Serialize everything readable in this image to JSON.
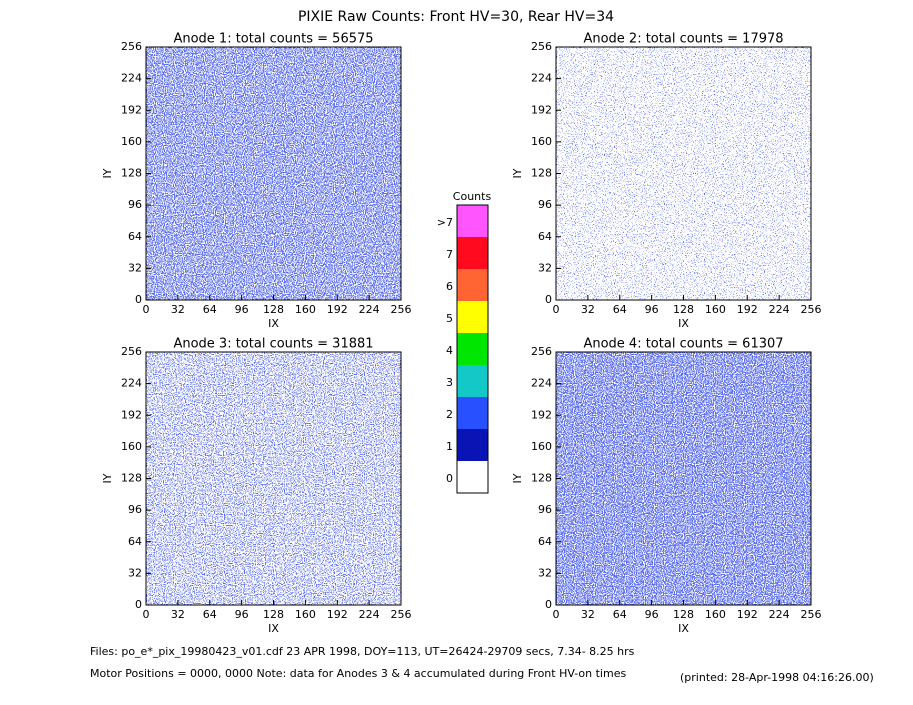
{
  "header": {
    "title": "PIXIE Raw Counts:  Front HV=30, Rear HV=34"
  },
  "chart_data": [
    {
      "type": "heatmap",
      "title": "Anode 1: total counts = 56575",
      "xlabel": "IX",
      "ylabel": "IY",
      "xlim": [
        0,
        256
      ],
      "ylim": [
        0,
        256
      ],
      "xticks": [
        0,
        32,
        64,
        96,
        128,
        160,
        192,
        224,
        256
      ],
      "yticks": [
        0,
        32,
        64,
        96,
        128,
        160,
        192,
        224,
        256
      ]
    },
    {
      "type": "heatmap",
      "title": "Anode 2: total counts = 17978",
      "xlabel": "IX",
      "ylabel": "IY",
      "xlim": [
        0,
        256
      ],
      "ylim": [
        0,
        256
      ],
      "xticks": [
        0,
        32,
        64,
        96,
        128,
        160,
        192,
        224,
        256
      ],
      "yticks": [
        0,
        32,
        64,
        96,
        128,
        160,
        192,
        224,
        256
      ]
    },
    {
      "type": "heatmap",
      "title": "Anode 3: total counts = 31881",
      "xlabel": "IX",
      "ylabel": "IY",
      "xlim": [
        0,
        256
      ],
      "ylim": [
        0,
        256
      ],
      "xticks": [
        0,
        32,
        64,
        96,
        128,
        160,
        192,
        224,
        256
      ],
      "yticks": [
        0,
        32,
        64,
        96,
        128,
        160,
        192,
        224,
        256
      ]
    },
    {
      "type": "heatmap",
      "title": "Anode 4: total counts = 61307",
      "xlabel": "IX",
      "ylabel": "IY",
      "xlim": [
        0,
        256
      ],
      "ylim": [
        0,
        256
      ],
      "xticks": [
        0,
        32,
        64,
        96,
        128,
        160,
        192,
        224,
        256
      ],
      "yticks": [
        0,
        32,
        64,
        96,
        128,
        160,
        192,
        224,
        256
      ]
    }
  ],
  "colorbar": {
    "title": "Counts",
    "labels": [
      ">7",
      "7",
      "6",
      "5",
      "4",
      "3",
      "2",
      "1",
      "0"
    ],
    "colors": [
      "#ff55ff",
      "#ff0a1e",
      "#ff6432",
      "#ffff00",
      "#00e600",
      "#14c8c8",
      "#2850ff",
      "#0a14b4",
      "#ffffff"
    ]
  },
  "footer": {
    "files": "Files: po_e*_pix_19980423_v01.cdf    23 APR 1998, DOY=113, UT=26424-29709 secs,  7.34- 8.25 hrs",
    "motor": "Motor Positions = 0000, 0000    Note: data for Anodes 3 & 4 accumulated during Front HV-on times",
    "printed": "(printed: 28-Apr-1998 04:16:26.00)"
  }
}
